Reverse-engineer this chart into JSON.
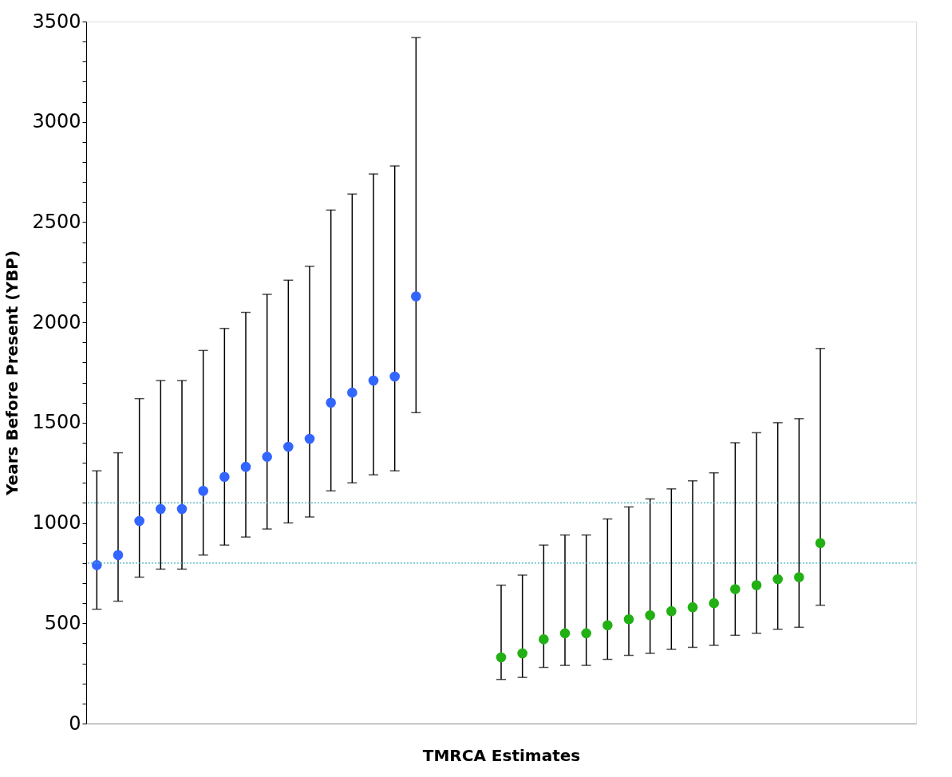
{
  "chart_data": {
    "type": "scatter",
    "xlabel": "TMRCA Estimates",
    "ylabel": "Years Before Present (YBP)",
    "categories": [
      null,
      null,
      null,
      null,
      null,
      null,
      null,
      null,
      null,
      null,
      null,
      null,
      null,
      null,
      null,
      null,
      null,
      null,
      null,
      null,
      null,
      null,
      null,
      null,
      null,
      null,
      null,
      null,
      null,
      null,
      null,
      null,
      null,
      null,
      null,
      null,
      null,
      null,
      null
    ],
    "series": [
      {
        "color": "#3366ff",
        "values": [
          790,
          840,
          1010,
          1070,
          1070,
          1160,
          1230,
          1280,
          1330,
          1380,
          1420,
          1600,
          1650,
          1710,
          1730,
          2130,
          null,
          null,
          null,
          null,
          null,
          null,
          null,
          null,
          null,
          null,
          null,
          null,
          null,
          null,
          null,
          null,
          null,
          null,
          null,
          null,
          null,
          null,
          null
        ],
        "errors": [
          [
            570,
            1260
          ],
          [
            610,
            1350
          ],
          [
            730,
            1620
          ],
          [
            770,
            1710
          ],
          [
            770,
            1710
          ],
          [
            840,
            1860
          ],
          [
            890,
            1970
          ],
          [
            930,
            2050
          ],
          [
            970,
            2140
          ],
          [
            1000,
            2210
          ],
          [
            1030,
            2280
          ],
          [
            1160,
            2560
          ],
          [
            1200,
            2640
          ],
          [
            1240,
            2740
          ],
          [
            1260,
            2780
          ],
          [
            1550,
            3420
          ],
          null,
          null,
          null,
          null,
          null,
          null,
          null,
          null,
          null,
          null,
          null,
          null,
          null,
          null,
          null,
          null,
          null,
          null,
          null,
          null,
          null,
          null,
          null
        ]
      },
      {
        "color": "#22b014",
        "values": [
          null,
          null,
          null,
          null,
          null,
          null,
          null,
          null,
          null,
          null,
          null,
          null,
          null,
          null,
          null,
          null,
          null,
          null,
          null,
          330,
          350,
          420,
          450,
          450,
          490,
          520,
          540,
          560,
          580,
          600,
          670,
          690,
          720,
          730,
          900,
          null,
          null,
          null,
          null
        ],
        "errors": [
          null,
          null,
          null,
          null,
          null,
          null,
          null,
          null,
          null,
          null,
          null,
          null,
          null,
          null,
          null,
          null,
          null,
          null,
          null,
          [
            220,
            690
          ],
          [
            230,
            740
          ],
          [
            280,
            890
          ],
          [
            290,
            940
          ],
          [
            290,
            940
          ],
          [
            320,
            1020
          ],
          [
            340,
            1080
          ],
          [
            350,
            1120
          ],
          [
            370,
            1170
          ],
          [
            380,
            1210
          ],
          [
            390,
            1250
          ],
          [
            440,
            1400
          ],
          [
            450,
            1450
          ],
          [
            470,
            1500
          ],
          [
            480,
            1520
          ],
          [
            590,
            1870
          ],
          null,
          null,
          null,
          null
        ]
      }
    ],
    "ylim": [
      0,
      3500
    ],
    "yticks": [
      0,
      {
        "value": 100,
        "label": null
      },
      {
        "value": 200,
        "label": null
      },
      {
        "value": 300,
        "label": null
      },
      {
        "value": 400,
        "label": null
      },
      500,
      {
        "value": 600,
        "label": null
      },
      {
        "value": 700,
        "label": null
      },
      {
        "value": 800,
        "label": null
      },
      {
        "value": 900,
        "label": null
      },
      1000,
      {
        "value": 1100,
        "label": null
      },
      {
        "value": 1200,
        "label": null
      },
      {
        "value": 1300,
        "label": null
      },
      {
        "value": 1400,
        "label": null
      },
      1500,
      {
        "value": 1600,
        "label": null
      },
      {
        "value": 1700,
        "label": null
      },
      {
        "value": 1800,
        "label": null
      },
      {
        "value": 1900,
        "label": null
      },
      2000,
      {
        "value": 2100,
        "label": null
      },
      {
        "value": 2200,
        "label": null
      },
      {
        "value": 2300,
        "label": null
      },
      {
        "value": 2400,
        "label": null
      },
      2500,
      {
        "value": 2600,
        "label": null
      },
      {
        "value": 2700,
        "label": null
      },
      {
        "value": 2800,
        "label": null
      },
      {
        "value": 2900,
        "label": null
      },
      3000,
      {
        "value": 3100,
        "label": null
      },
      {
        "value": 3200,
        "label": null
      },
      {
        "value": 3300,
        "label": null
      },
      {
        "value": 3400,
        "label": null
      },
      3500
    ],
    "tick_labels": "y",
    "grid": false,
    "marker": "circle",
    "ref_lines": [
      {
        "axis": "y",
        "value": 1100,
        "color": "#40b0b8",
        "line_style": "dotted"
      },
      {
        "axis": "y",
        "value": 800,
        "color": "#40b0b8",
        "line_style": "dotted"
      }
    ]
  }
}
